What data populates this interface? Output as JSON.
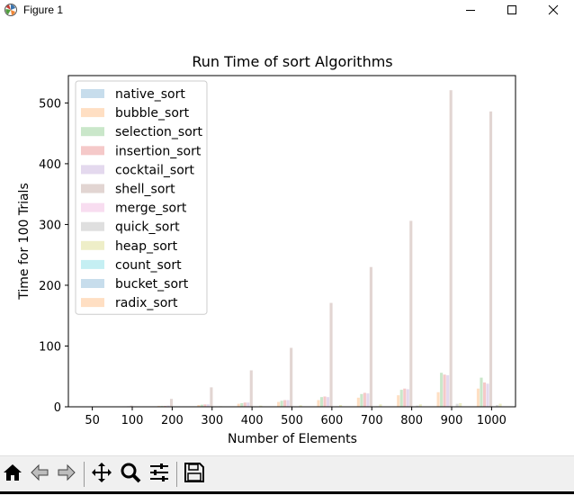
{
  "window": {
    "title": "Figure 1",
    "controls": [
      "minimize",
      "maximize",
      "close"
    ]
  },
  "toolbar": {
    "buttons": [
      "home-icon",
      "back-arrow-icon",
      "forward-arrow-icon",
      "pan-icon",
      "zoom-icon",
      "subplots-config-icon",
      "save-icon"
    ]
  },
  "chart_data": {
    "type": "bar",
    "title": "Run Time of sort Algorithms",
    "xlabel": "Number of Elements",
    "ylabel": "Time for 100 Trials",
    "categories": [
      "50",
      "100",
      "200",
      "300",
      "400",
      "500",
      "600",
      "700",
      "800",
      "900",
      "1000"
    ],
    "ylim": [
      0,
      545
    ],
    "yticks": [
      "0",
      "100",
      "200",
      "300",
      "400",
      "500"
    ],
    "legend_position": "upper left",
    "alpha": 0.25,
    "series": [
      {
        "name": "native_sort",
        "color": "#1f77b4",
        "values": [
          0,
          0,
          0,
          0,
          0,
          0,
          0,
          0,
          0,
          0,
          0
        ]
      },
      {
        "name": "bubble_sort",
        "color": "#ff7f0e",
        "values": [
          0,
          0.5,
          1.5,
          3,
          5,
          8,
          11,
          15,
          19,
          24,
          30
        ]
      },
      {
        "name": "selection_sort",
        "color": "#2ca02c",
        "values": [
          0,
          0.5,
          1.5,
          3.5,
          6,
          10,
          16,
          21,
          28,
          56,
          48
        ]
      },
      {
        "name": "insertion_sort",
        "color": "#d62728",
        "values": [
          0,
          0.5,
          1.5,
          4,
          7,
          11,
          17,
          23,
          30,
          53,
          40
        ]
      },
      {
        "name": "cocktail_sort",
        "color": "#9467bd",
        "values": [
          0,
          1,
          2,
          4,
          7,
          11,
          16,
          22,
          29,
          52,
          38
        ]
      },
      {
        "name": "shell_sort",
        "color": "#8c564b",
        "values": [
          0.5,
          2,
          13,
          32,
          60,
          97,
          171,
          230,
          306,
          521,
          486
        ]
      },
      {
        "name": "merge_sort",
        "color": "#e377c2",
        "values": [
          0,
          0,
          0,
          0,
          0,
          0,
          0.5,
          0.5,
          0.5,
          0.5,
          0.5
        ]
      },
      {
        "name": "quick_sort",
        "color": "#7f7f7f",
        "values": [
          0,
          0,
          0,
          0,
          0.5,
          0.5,
          1,
          1,
          2,
          5,
          3
        ]
      },
      {
        "name": "heap_sort",
        "color": "#bcbd22",
        "values": [
          0,
          0,
          0.5,
          1,
          2,
          2.5,
          3,
          4,
          4,
          6,
          5
        ]
      },
      {
        "name": "count_sort",
        "color": "#17becf",
        "values": [
          0,
          0,
          0,
          0,
          0,
          0,
          0,
          0,
          0,
          0,
          0
        ]
      },
      {
        "name": "bucket_sort",
        "color": "#1f77b4",
        "values": [
          0,
          0,
          0,
          0,
          0,
          0,
          0,
          0,
          0,
          0,
          0
        ]
      },
      {
        "name": "radix_sort",
        "color": "#ff7f0e",
        "values": [
          0,
          0,
          0,
          0,
          0,
          0,
          0,
          0,
          0,
          0,
          0
        ]
      }
    ]
  }
}
